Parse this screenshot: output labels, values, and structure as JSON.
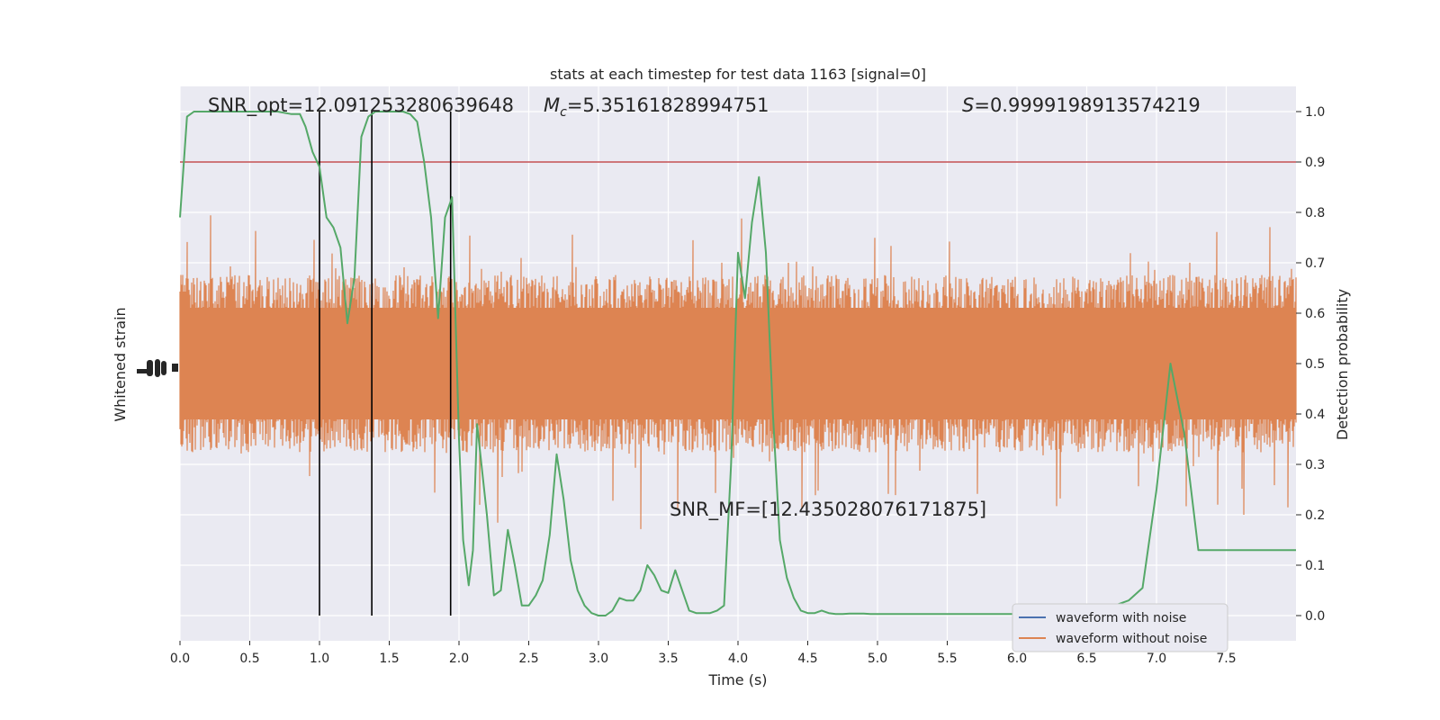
{
  "chart_data": {
    "type": "line",
    "title": "stats at each timestep for test data 1163 [signal=0]",
    "xlabel": "Time (s)",
    "ylabel_left": "Whitened strain",
    "ylabel_right": "Detection probability",
    "xlim": [
      0.0,
      8.0
    ],
    "ylim_right": [
      -0.05,
      1.05
    ],
    "xticks": [
      0.0,
      0.5,
      1.0,
      1.5,
      2.0,
      2.5,
      3.0,
      3.5,
      4.0,
      4.5,
      5.0,
      5.5,
      6.0,
      6.5,
      7.0,
      7.5
    ],
    "xtick_labels": [
      "0.0",
      "0.5",
      "1.0",
      "1.5",
      "2.0",
      "2.5",
      "3.0",
      "3.5",
      "4.0",
      "4.5",
      "5.0",
      "5.5",
      "6.0",
      "6.5",
      "7.0",
      "7.5"
    ],
    "yticks_right": [
      0.0,
      0.1,
      0.2,
      0.3,
      0.4,
      0.5,
      0.6,
      0.7,
      0.8,
      0.9,
      1.0
    ],
    "ytick_labels_right": [
      "0.0",
      "0.1",
      "0.2",
      "0.3",
      "0.4",
      "0.5",
      "0.6",
      "0.7",
      "0.8",
      "0.9",
      "1.0"
    ],
    "grid": true,
    "threshold": {
      "y": 0.9,
      "color": "#c44e52"
    },
    "vertical_markers": [
      1.0,
      1.375,
      1.94
    ],
    "annotations": {
      "snr_opt": "SNR_opt=12.091253280639648",
      "mc_prefix": "M",
      "mc_sub": "c",
      "mc_value": "=5.35161828994751",
      "s_prefix": "S",
      "s_value": "=0.9999198913574219",
      "snr_mf": "SNR_MF=[12.435028076171875]"
    },
    "legend": {
      "placement": "bottom-right",
      "entries": [
        {
          "label": "waveform with noise",
          "color": "#4c72b0"
        },
        {
          "label": "waveform without noise",
          "color": "#dd8452"
        }
      ]
    },
    "series": [
      {
        "color": "#55a868",
        "x": [
          0.0,
          0.05,
          0.1,
          0.15,
          0.2,
          0.3,
          0.4,
          0.5,
          0.6,
          0.7,
          0.8,
          0.86,
          0.9,
          0.95,
          1.0,
          1.05,
          1.1,
          1.15,
          1.2,
          1.25,
          1.3,
          1.35,
          1.4,
          1.45,
          1.5,
          1.55,
          1.6,
          1.65,
          1.7,
          1.75,
          1.8,
          1.85,
          1.9,
          1.95,
          2.0,
          2.03,
          2.07,
          2.1,
          2.13,
          2.2,
          2.25,
          2.3,
          2.35,
          2.4,
          2.45,
          2.5,
          2.55,
          2.6,
          2.65,
          2.7,
          2.75,
          2.8,
          2.85,
          2.9,
          2.95,
          3.0,
          3.05,
          3.1,
          3.15,
          3.2,
          3.25,
          3.3,
          3.35,
          3.4,
          3.45,
          3.5,
          3.55,
          3.6,
          3.65,
          3.7,
          3.75,
          3.8,
          3.85,
          3.9,
          3.95,
          4.0,
          4.05,
          4.1,
          4.15,
          4.2,
          4.25,
          4.3,
          4.35,
          4.4,
          4.45,
          4.5,
          4.55,
          4.6,
          4.65,
          4.7,
          4.75,
          4.8,
          4.85,
          4.9,
          4.95,
          5.0,
          5.05,
          5.1,
          5.15,
          5.2,
          5.25,
          5.3,
          5.4,
          5.5,
          5.6,
          5.7,
          5.8,
          5.9,
          6.0,
          6.1,
          6.2,
          6.3,
          6.4,
          6.5,
          6.6,
          6.7,
          6.8,
          6.9,
          7.0,
          7.1,
          7.2,
          7.3,
          7.4,
          7.5,
          7.55,
          7.6,
          7.65,
          7.7,
          7.75,
          7.8,
          7.85,
          7.9,
          7.95,
          8.0
        ],
        "y": [
          0.79,
          0.99,
          1.0,
          1.0,
          1.0,
          1.0,
          1.0,
          1.0,
          1.0,
          1.0,
          0.995,
          0.995,
          0.97,
          0.92,
          0.89,
          0.79,
          0.77,
          0.73,
          0.58,
          0.67,
          0.95,
          0.99,
          1.0,
          1.0,
          1.0,
          1.0,
          1.0,
          0.995,
          0.98,
          0.9,
          0.79,
          0.59,
          0.79,
          0.83,
          0.35,
          0.15,
          0.06,
          0.13,
          0.38,
          0.2,
          0.04,
          0.05,
          0.17,
          0.1,
          0.02,
          0.02,
          0.04,
          0.07,
          0.16,
          0.32,
          0.23,
          0.11,
          0.05,
          0.02,
          0.005,
          0.0,
          0.0,
          0.01,
          0.035,
          0.03,
          0.03,
          0.05,
          0.1,
          0.08,
          0.05,
          0.045,
          0.09,
          0.05,
          0.01,
          0.005,
          0.005,
          0.005,
          0.01,
          0.02,
          0.3,
          0.72,
          0.63,
          0.78,
          0.87,
          0.72,
          0.4,
          0.15,
          0.075,
          0.035,
          0.01,
          0.005,
          0.005,
          0.01,
          0.005,
          0.003,
          0.003,
          0.004,
          0.004,
          0.004,
          0.003,
          0.003,
          0.003,
          0.003,
          0.003,
          0.003,
          0.003,
          0.003,
          0.003,
          0.003,
          0.003,
          0.003,
          0.003,
          0.003,
          0.003,
          0.003,
          0.003,
          0.003,
          0.003,
          0.003,
          0.01,
          0.02,
          0.03,
          0.055,
          0.25,
          0.5,
          0.36,
          0.13,
          0.13,
          0.13,
          0.13,
          0.13,
          0.13,
          0.13,
          0.13,
          0.13,
          0.13,
          0.13,
          0.13,
          0.13
        ]
      }
    ]
  }
}
